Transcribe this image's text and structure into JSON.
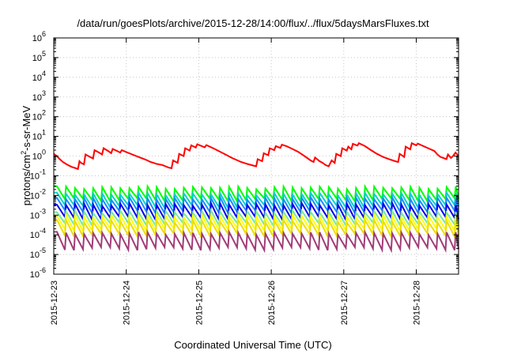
{
  "chart_data": {
    "type": "line",
    "title": "/data/run/goesPlots/archive/2015-12-28/14:00/flux/../flux/5daysMarsFluxes.txt",
    "xlabel": "Coordinated Universal Time (UTC)",
    "ylabel_prefix": "protons/cm",
    "ylabel_sup": "2",
    "ylabel_suffix": "-s-sr-MeV",
    "x_scale": "time",
    "y_scale": "log",
    "xlim": [
      "2015-12-23",
      "2015-12-28T14:00"
    ],
    "ylim": [
      1e-06,
      1000000.0
    ],
    "x_ticks": [
      "2015-12-23",
      "2015-12-24",
      "2015-12-25",
      "2015-12-26",
      "2015-12-27",
      "2015-12-28"
    ],
    "y_ticks": [
      {
        "value": 1e-06,
        "base": "10",
        "exp": "-6"
      },
      {
        "value": 1e-05,
        "base": "10",
        "exp": "-5"
      },
      {
        "value": 0.0001,
        "base": "10",
        "exp": "-4"
      },
      {
        "value": 0.001,
        "base": "10",
        "exp": "-3"
      },
      {
        "value": 0.01,
        "base": "10",
        "exp": "-2"
      },
      {
        "value": 0.1,
        "base": "10",
        "exp": "-1"
      },
      {
        "value": 1,
        "base": "10",
        "exp": "0"
      },
      {
        "value": 10.0,
        "base": "10",
        "exp": "1"
      },
      {
        "value": 100.0,
        "base": "10",
        "exp": "2"
      },
      {
        "value": 1000.0,
        "base": "10",
        "exp": "3"
      },
      {
        "value": 10000.0,
        "base": "10",
        "exp": "4"
      },
      {
        "value": 100000.0,
        "base": "10",
        "exp": "5"
      },
      {
        "value": 1000000.0,
        "base": "10",
        "exp": "6"
      }
    ],
    "grid": true,
    "legend": "none",
    "series": [
      {
        "color": "#ff0000",
        "points": [
          [
            "2015-12-23T00:00",
            1.3
          ],
          [
            "2015-12-23T01:00",
            1.0
          ],
          [
            "2015-12-23T02:00",
            0.7
          ],
          [
            "2015-12-23T03:00",
            0.5
          ],
          [
            "2015-12-23T04:00",
            0.4
          ],
          [
            "2015-12-23T05:00",
            0.33
          ],
          [
            "2015-12-23T06:00",
            0.28
          ],
          [
            "2015-12-23T07:00",
            0.25
          ],
          [
            "2015-12-23T08:00",
            0.22
          ],
          [
            "2015-12-23T08:30",
            0.55
          ],
          [
            "2015-12-23T09:00",
            0.45
          ],
          [
            "2015-12-23T10:00",
            0.38
          ],
          [
            "2015-12-23T10:30",
            1.2
          ],
          [
            "2015-12-23T12:00",
            0.9
          ],
          [
            "2015-12-23T13:00",
            0.75
          ],
          [
            "2015-12-23T13:30",
            2.0
          ],
          [
            "2015-12-23T15:00",
            1.5
          ],
          [
            "2015-12-23T16:00",
            1.2
          ],
          [
            "2015-12-23T16:30",
            2.5
          ],
          [
            "2015-12-23T18:00",
            1.8
          ],
          [
            "2015-12-23T19:00",
            1.4
          ],
          [
            "2015-12-23T19:30",
            2.3
          ],
          [
            "2015-12-23T21:00",
            1.8
          ],
          [
            "2015-12-23T22:00",
            1.5
          ],
          [
            "2015-12-23T22:30",
            2.0
          ],
          [
            "2015-12-24T00:00",
            1.6
          ],
          [
            "2015-12-24T02:00",
            1.2
          ],
          [
            "2015-12-24T04:00",
            0.9
          ],
          [
            "2015-12-24T06:00",
            0.7
          ],
          [
            "2015-12-24T07:00",
            0.6
          ],
          [
            "2015-12-24T08:00",
            0.5
          ],
          [
            "2015-12-24T09:00",
            0.45
          ],
          [
            "2015-12-24T10:00",
            0.4
          ],
          [
            "2015-12-24T12:00",
            0.35
          ],
          [
            "2015-12-24T13:00",
            0.3
          ],
          [
            "2015-12-24T14:00",
            0.26
          ],
          [
            "2015-12-24T15:00",
            0.24
          ],
          [
            "2015-12-24T15:30",
            0.6
          ],
          [
            "2015-12-24T17:00",
            0.45
          ],
          [
            "2015-12-24T17:30",
            1.3
          ],
          [
            "2015-12-24T19:00",
            1.0
          ],
          [
            "2015-12-24T19:30",
            2.5
          ],
          [
            "2015-12-24T21:00",
            1.9
          ],
          [
            "2015-12-24T21:30",
            3.5
          ],
          [
            "2015-12-24T23:00",
            2.7
          ],
          [
            "2015-12-24T23:30",
            4.0
          ],
          [
            "2015-12-25T01:00",
            3.2
          ],
          [
            "2015-12-25T02:00",
            2.8
          ],
          [
            "2015-12-25T02:30",
            3.6
          ],
          [
            "2015-12-25T05:00",
            2.4
          ],
          [
            "2015-12-25T08:00",
            1.4
          ],
          [
            "2015-12-25T11:00",
            0.8
          ],
          [
            "2015-12-25T14:00",
            0.5
          ],
          [
            "2015-12-25T16:00",
            0.4
          ],
          [
            "2015-12-25T18:00",
            0.33
          ],
          [
            "2015-12-25T19:00",
            0.3
          ],
          [
            "2015-12-25T19:30",
            0.7
          ],
          [
            "2015-12-25T21:00",
            0.55
          ],
          [
            "2015-12-25T21:30",
            1.4
          ],
          [
            "2015-12-25T23:00",
            1.1
          ],
          [
            "2015-12-25T23:30",
            2.5
          ],
          [
            "2015-12-26T01:00",
            2.0
          ],
          [
            "2015-12-26T01:30",
            3.2
          ],
          [
            "2015-12-26T03:00",
            2.6
          ],
          [
            "2015-12-26T03:30",
            3.8
          ],
          [
            "2015-12-26T05:00",
            3.2
          ],
          [
            "2015-12-26T07:00",
            2.3
          ],
          [
            "2015-12-26T09:00",
            1.6
          ],
          [
            "2015-12-26T11:00",
            1.0
          ],
          [
            "2015-12-26T13:00",
            0.6
          ],
          [
            "2015-12-26T14:00",
            0.5
          ],
          [
            "2015-12-26T14:30",
            0.85
          ],
          [
            "2015-12-26T16:00",
            0.55
          ],
          [
            "2015-12-26T17:00",
            0.45
          ],
          [
            "2015-12-26T18:00",
            0.35
          ],
          [
            "2015-12-26T19:00",
            0.3
          ],
          [
            "2015-12-26T20:00",
            0.6
          ],
          [
            "2015-12-26T21:00",
            0.45
          ],
          [
            "2015-12-26T21:30",
            1.3
          ],
          [
            "2015-12-26T23:00",
            1.0
          ],
          [
            "2015-12-26T23:30",
            2.5
          ],
          [
            "2015-12-27T01:00",
            1.9
          ],
          [
            "2015-12-27T01:30",
            3.0
          ],
          [
            "2015-12-27T02:30",
            2.2
          ],
          [
            "2015-12-27T03:00",
            4.2
          ],
          [
            "2015-12-27T04:30",
            3.4
          ],
          [
            "2015-12-27T05:00",
            4.5
          ],
          [
            "2015-12-27T07:00",
            3.2
          ],
          [
            "2015-12-27T09:00",
            2.0
          ],
          [
            "2015-12-27T11:00",
            1.3
          ],
          [
            "2015-12-27T13:00",
            0.9
          ],
          [
            "2015-12-27T15:00",
            0.7
          ],
          [
            "2015-12-27T17:00",
            0.55
          ],
          [
            "2015-12-27T18:00",
            0.5
          ],
          [
            "2015-12-27T18:30",
            1.3
          ],
          [
            "2015-12-27T20:00",
            0.9
          ],
          [
            "2015-12-27T20:30",
            3.0
          ],
          [
            "2015-12-27T22:00",
            2.2
          ],
          [
            "2015-12-27T22:30",
            4.5
          ],
          [
            "2015-12-28T00:00",
            3.5
          ],
          [
            "2015-12-28T00:30",
            4.3
          ],
          [
            "2015-12-28T03:00",
            2.9
          ],
          [
            "2015-12-28T06:00",
            1.8
          ],
          [
            "2015-12-28T07:00",
            1.2
          ],
          [
            "2015-12-28T08:00",
            0.9
          ],
          [
            "2015-12-28T09:00",
            0.8
          ],
          [
            "2015-12-28T10:00",
            0.7
          ],
          [
            "2015-12-28T10:30",
            1.2
          ],
          [
            "2015-12-28T11:30",
            0.8
          ],
          [
            "2015-12-28T12:00",
            0.95
          ],
          [
            "2015-12-28T13:00",
            1.5
          ],
          [
            "2015-12-28T14:00",
            1.0
          ]
        ]
      },
      {
        "color": "#00ff00",
        "high": 0.025,
        "low": 0.006
      },
      {
        "color": "#00d2c8",
        "high": 0.012,
        "low": 0.0028
      },
      {
        "color": "#1a8cff",
        "high": 0.007,
        "low": 0.0015
      },
      {
        "color": "#0000ee",
        "high": 0.0035,
        "low": 0.0007
      },
      {
        "color": "#78e8a0",
        "high": 0.0015,
        "low": 0.00035
      },
      {
        "color": "#ffff00",
        "high": 0.0009,
        "low": 0.00018
      },
      {
        "color": "#eedd00",
        "high": 0.0005,
        "low": 0.0001
      },
      {
        "color": "#a03c78",
        "high": 0.00012,
        "low": 2e-05
      }
    ]
  }
}
